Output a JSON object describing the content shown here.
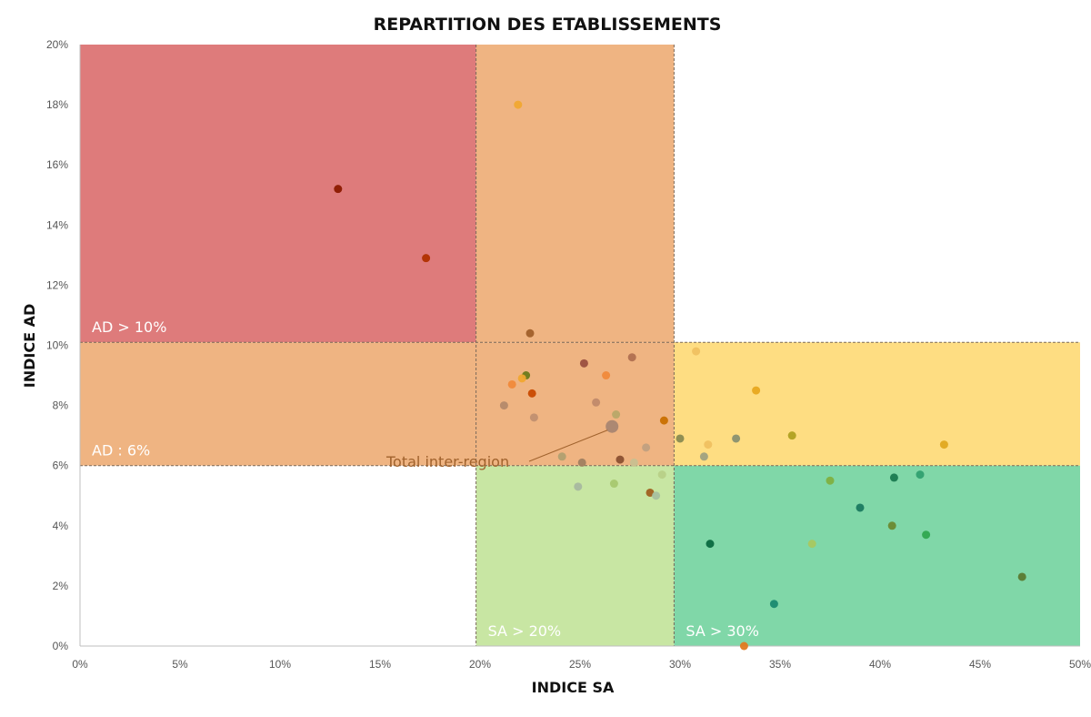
{
  "chart_data": {
    "type": "scatter",
    "title": "REPARTITION DES ETABLISSEMENTS",
    "xlabel": "INDICE SA",
    "ylabel": "INDICE AD",
    "xlim": [
      0,
      0.5
    ],
    "ylim": [
      0,
      0.2
    ],
    "x_ticks": [
      0,
      0.05,
      0.1,
      0.15,
      0.2,
      0.25,
      0.3,
      0.35,
      0.4,
      0.45,
      0.5
    ],
    "x_tick_labels": [
      "0%",
      "5%",
      "10%",
      "15%",
      "20%",
      "25%",
      "30%",
      "35%",
      "40%",
      "45%",
      "50%"
    ],
    "y_ticks": [
      0,
      0.02,
      0.04,
      0.06,
      0.08,
      0.1,
      0.12,
      0.14,
      0.16,
      0.18,
      0.2
    ],
    "y_tick_labels": [
      "0%",
      "2%",
      "4%",
      "6%",
      "8%",
      "10%",
      "12%",
      "14%",
      "16%",
      "18%",
      "20%"
    ],
    "grid": false,
    "zones": [
      {
        "x": [
          0,
          0.198
        ],
        "y": [
          0.101,
          0.2
        ],
        "color": "#de7b7b",
        "label": "AD > 10%"
      },
      {
        "x": [
          0.198,
          0.297
        ],
        "y": [
          0.101,
          0.2
        ],
        "color": "#efb482",
        "label": ""
      },
      {
        "x": [
          0,
          0.297
        ],
        "y": [
          0.06,
          0.101
        ],
        "color": "#efb482",
        "label": "AD : 6%"
      },
      {
        "x": [
          0.297,
          0.5
        ],
        "y": [
          0.06,
          0.101
        ],
        "color": "#fedd82",
        "label": ""
      },
      {
        "x": [
          0.198,
          0.297
        ],
        "y": [
          0,
          0.06
        ],
        "color": "#c8e6a3",
        "label": "SA > 20%"
      },
      {
        "x": [
          0.297,
          0.5
        ],
        "y": [
          0,
          0.06
        ],
        "color": "#80d7a8",
        "label": "SA > 30%"
      }
    ],
    "points": [
      {
        "x": 0.129,
        "y": 0.152,
        "color": "#8b1a00"
      },
      {
        "x": 0.173,
        "y": 0.129,
        "color": "#b03000"
      },
      {
        "x": 0.219,
        "y": 0.18,
        "color": "#f0a830"
      },
      {
        "x": 0.225,
        "y": 0.104,
        "color": "#a0602a"
      },
      {
        "x": 0.223,
        "y": 0.09,
        "color": "#6b7a1a"
      },
      {
        "x": 0.221,
        "y": 0.089,
        "color": "#f0a830"
      },
      {
        "x": 0.216,
        "y": 0.087,
        "color": "#f08a3a"
      },
      {
        "x": 0.226,
        "y": 0.084,
        "color": "#c84a00"
      },
      {
        "x": 0.212,
        "y": 0.08,
        "color": "#b48a6a"
      },
      {
        "x": 0.227,
        "y": 0.076,
        "color": "#c09070"
      },
      {
        "x": 0.252,
        "y": 0.094,
        "color": "#9a5040"
      },
      {
        "x": 0.263,
        "y": 0.09,
        "color": "#f08a3a"
      },
      {
        "x": 0.276,
        "y": 0.096,
        "color": "#b07050"
      },
      {
        "x": 0.258,
        "y": 0.081,
        "color": "#c08a6a"
      },
      {
        "x": 0.268,
        "y": 0.077,
        "color": "#b8a868"
      },
      {
        "x": 0.292,
        "y": 0.075,
        "color": "#c87000"
      },
      {
        "x": 0.241,
        "y": 0.063,
        "color": "#b0a070"
      },
      {
        "x": 0.251,
        "y": 0.061,
        "color": "#a08060"
      },
      {
        "x": 0.27,
        "y": 0.062,
        "color": "#8a5030"
      },
      {
        "x": 0.277,
        "y": 0.061,
        "color": "#c8c090"
      },
      {
        "x": 0.283,
        "y": 0.066,
        "color": "#c0a080"
      },
      {
        "x": 0.249,
        "y": 0.053,
        "color": "#a8b8a0"
      },
      {
        "x": 0.267,
        "y": 0.054,
        "color": "#a8c870"
      },
      {
        "x": 0.285,
        "y": 0.051,
        "color": "#a06020"
      },
      {
        "x": 0.288,
        "y": 0.05,
        "color": "#a8c0a0"
      },
      {
        "x": 0.291,
        "y": 0.057,
        "color": "#b8d088"
      },
      {
        "x": 0.266,
        "y": 0.073,
        "color": "#a08070",
        "size": 14,
        "label": "Total inter-region"
      },
      {
        "x": 0.308,
        "y": 0.098,
        "color": "#f0c060"
      },
      {
        "x": 0.338,
        "y": 0.085,
        "color": "#e8a820"
      },
      {
        "x": 0.3,
        "y": 0.069,
        "color": "#8a8a50"
      },
      {
        "x": 0.314,
        "y": 0.067,
        "color": "#f0c060"
      },
      {
        "x": 0.312,
        "y": 0.063,
        "color": "#a0a080"
      },
      {
        "x": 0.328,
        "y": 0.069,
        "color": "#8a9070"
      },
      {
        "x": 0.356,
        "y": 0.07,
        "color": "#b0a020"
      },
      {
        "x": 0.432,
        "y": 0.067,
        "color": "#e0a820"
      },
      {
        "x": 0.375,
        "y": 0.055,
        "color": "#80b040"
      },
      {
        "x": 0.407,
        "y": 0.056,
        "color": "#1a7a50"
      },
      {
        "x": 0.42,
        "y": 0.057,
        "color": "#30a070"
      },
      {
        "x": 0.39,
        "y": 0.046,
        "color": "#1a7a60"
      },
      {
        "x": 0.406,
        "y": 0.04,
        "color": "#6a8a30"
      },
      {
        "x": 0.423,
        "y": 0.037,
        "color": "#30a850"
      },
      {
        "x": 0.315,
        "y": 0.034,
        "color": "#0a6a40"
      },
      {
        "x": 0.366,
        "y": 0.034,
        "color": "#a8c860"
      },
      {
        "x": 0.471,
        "y": 0.023,
        "color": "#5a7a30"
      },
      {
        "x": 0.347,
        "y": 0.014,
        "color": "#1a8a70"
      },
      {
        "x": 0.332,
        "y": 0.0,
        "color": "#e07a20"
      }
    ]
  }
}
